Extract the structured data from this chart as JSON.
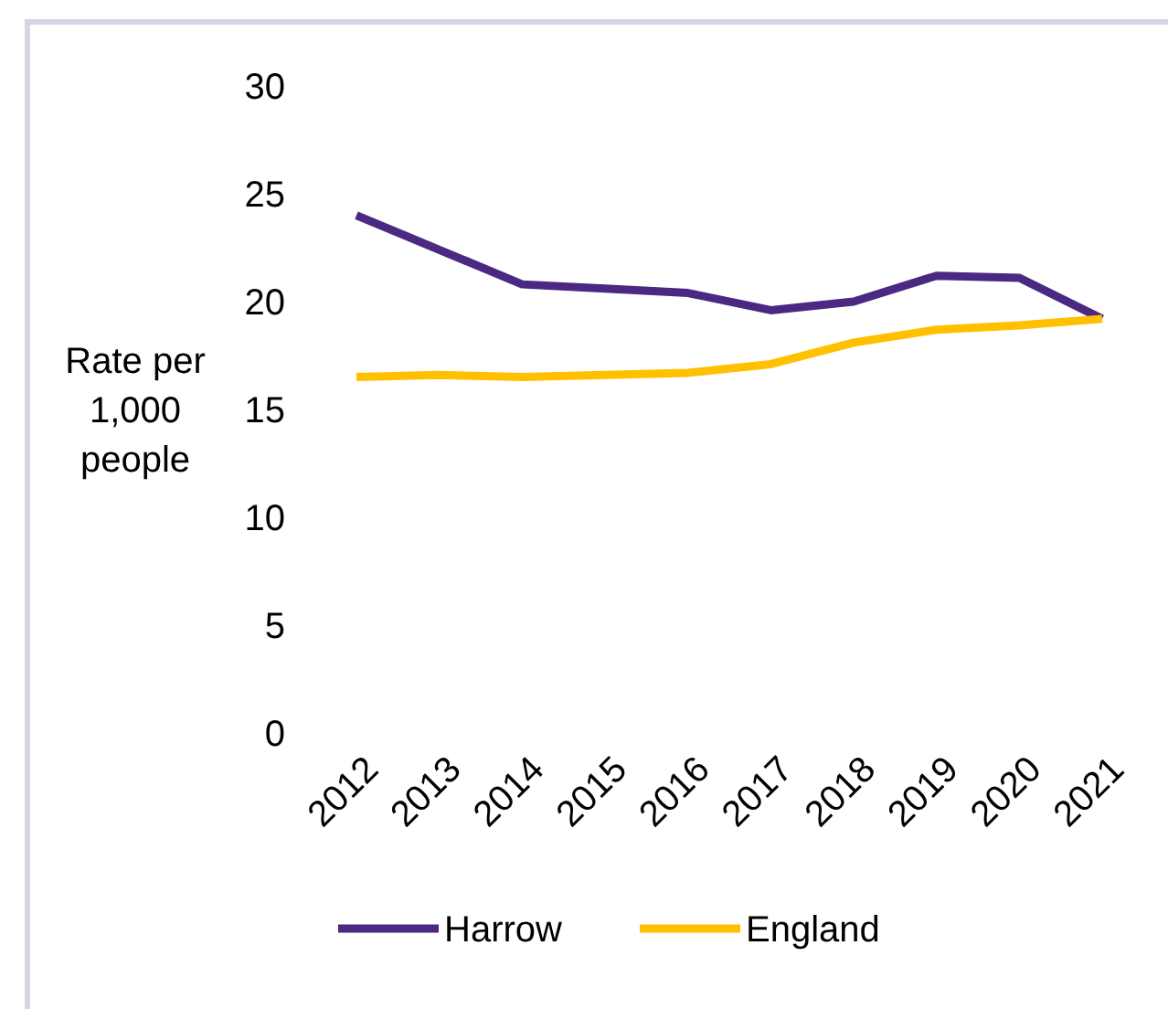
{
  "chart_data": {
    "type": "line",
    "ylabel": "Rate per 1,000 people",
    "categories": [
      "2012",
      "2013",
      "2014",
      "2015",
      "2016",
      "2017",
      "2018",
      "2019",
      "2020",
      "2021"
    ],
    "series": [
      {
        "name": "Harrow",
        "color": "#4b2882",
        "values": [
          24.0,
          22.4,
          20.8,
          20.6,
          20.4,
          19.6,
          20.0,
          21.2,
          21.1,
          19.2
        ]
      },
      {
        "name": "England",
        "color": "#ffc000",
        "values": [
          16.5,
          16.6,
          16.5,
          16.6,
          16.7,
          17.1,
          18.1,
          18.7,
          18.9,
          19.2
        ]
      }
    ],
    "ylim": [
      0,
      30
    ],
    "yticks": [
      0,
      5,
      10,
      15,
      20,
      25,
      30
    ],
    "grid": false,
    "legend": "bottom",
    "marker": "none",
    "line_style": "solid"
  }
}
